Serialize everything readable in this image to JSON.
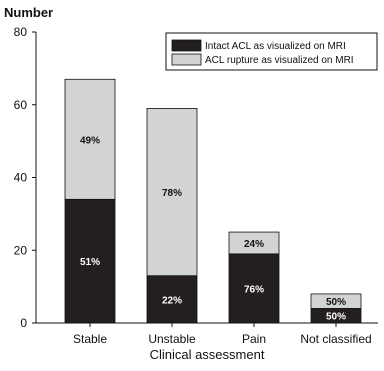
{
  "chart_data": {
    "type": "bar",
    "stacked": true,
    "ylabel": "Number",
    "xlabel": "Clinical assessment",
    "ylim": [
      0,
      80
    ],
    "yticks": [
      "0",
      "20",
      "40",
      "60",
      "80"
    ],
    "grid": false,
    "legend_position": "top-right",
    "categories": [
      "Stable",
      "Unstable",
      "Pain",
      "Not classified"
    ],
    "series": [
      {
        "name": "Intact ACL as visualized on MRI",
        "color": "#231f20",
        "label_color": "#ffffff",
        "values": [
          34,
          13,
          19,
          4
        ],
        "labels": [
          "51%",
          "22%",
          "76%",
          "50%"
        ]
      },
      {
        "name": "ACL rupture as visualized on MRI",
        "color": "#d1d3d4",
        "label_color": "#111111",
        "values": [
          33,
          46,
          6,
          4
        ],
        "labels": [
          "49%",
          "78%",
          "24%",
          "50%"
        ]
      }
    ]
  }
}
